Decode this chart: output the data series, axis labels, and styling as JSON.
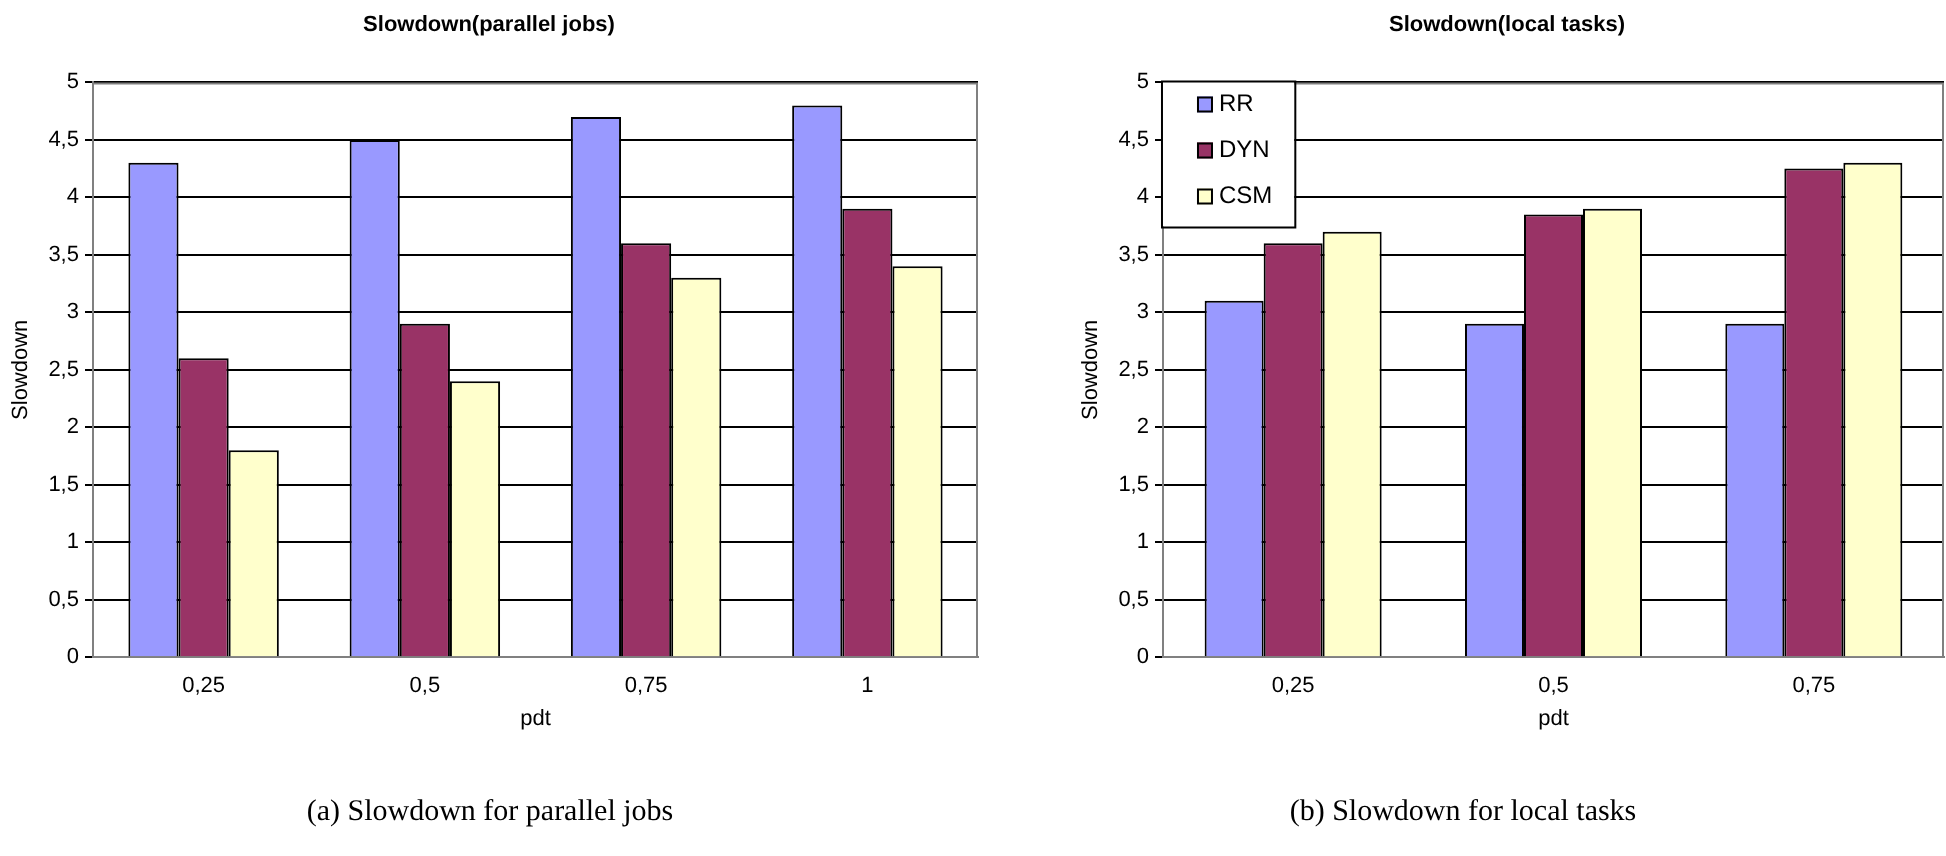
{
  "chart_data": [
    {
      "type": "bar",
      "title": "Slowdown(parallel jobs)",
      "xlabel": "pdt",
      "ylabel": "Slowdown",
      "categories": [
        "0,25",
        "0,5",
        "0,75",
        "1"
      ],
      "series": [
        {
          "color": "#9999ff",
          "values": [
            4.3,
            4.5,
            4.7,
            4.8
          ]
        },
        {
          "color": "#993366",
          "values": [
            2.6,
            2.9,
            3.6,
            3.9
          ]
        },
        {
          "color": "#ffffcc",
          "values": [
            1.8,
            2.4,
            3.3,
            3.4
          ]
        }
      ],
      "ylim": [
        0,
        5
      ],
      "yticks": [
        0,
        {
          "value": 0.5,
          "label": "0,5"
        },
        1,
        {
          "value": 1.5,
          "label": "1,5"
        },
        2,
        {
          "value": 2.5,
          "label": "2,5"
        },
        3,
        {
          "value": 3.5,
          "label": "3,5"
        },
        4,
        {
          "value": 4.5,
          "label": "4,5"
        },
        5
      ],
      "grid": "y",
      "legend": false,
      "annotations": [
        "(a) Slowdown for parallel jobs"
      ]
    },
    {
      "type": "bar",
      "title": "Slowdown(local tasks)",
      "xlabel": "pdt",
      "ylabel": "Slowdown",
      "categories": [
        "0,25",
        "0,5",
        "0,75"
      ],
      "series": [
        {
          "name": "RR",
          "color": "#9999ff",
          "values": [
            3.1,
            2.9,
            2.9
          ]
        },
        {
          "name": "DYN",
          "color": "#993366",
          "values": [
            3.6,
            3.85,
            4.25
          ]
        },
        {
          "name": "CSM",
          "color": "#ffffcc",
          "values": [
            3.7,
            3.9,
            4.3
          ]
        }
      ],
      "ylim": [
        0,
        5
      ],
      "yticks": [
        0,
        {
          "value": 0.5,
          "label": "0,5"
        },
        1,
        {
          "value": 1.5,
          "label": "1,5"
        },
        2,
        {
          "value": 2.5,
          "label": "2,5"
        },
        3,
        {
          "value": 3.5,
          "label": "3,5"
        },
        4,
        {
          "value": 4.5,
          "label": "4,5"
        },
        5
      ],
      "grid": "y",
      "legend": "top left",
      "annotations": [
        "(b) Slowdown for local tasks"
      ]
    }
  ]
}
